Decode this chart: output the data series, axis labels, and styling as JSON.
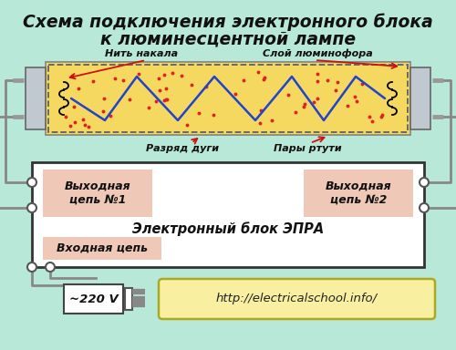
{
  "title_line1": "Схема подключения электронного блока",
  "title_line2": "к люминесцентной лампе",
  "bg_color": "#b8e8d8",
  "tube_fill": "#f5d860",
  "tube_cap_color": "#c0c8d0",
  "dashed_border_color": "#606060",
  "blue_line_color": "#2244cc",
  "red_dot_color": "#dd2222",
  "red_arrow_color": "#cc1111",
  "block_fill": "#ffffff",
  "block_stroke": "#333333",
  "pink_fill": "#f0c8b8",
  "wire_color": "#888888",
  "label1": "Нить накала",
  "label2": "Слой люминофора",
  "label3": "Разряд дуги",
  "label4": "Пары ртути",
  "text_out1": "Выходная\nцепь №1",
  "text_out2": "Выходная\nцепь №2",
  "text_epra": "Электронный блок ЭПРА",
  "text_in": "Входная цепь",
  "text_voltage": "~220 V",
  "text_url": "http://electricalschool.info/"
}
